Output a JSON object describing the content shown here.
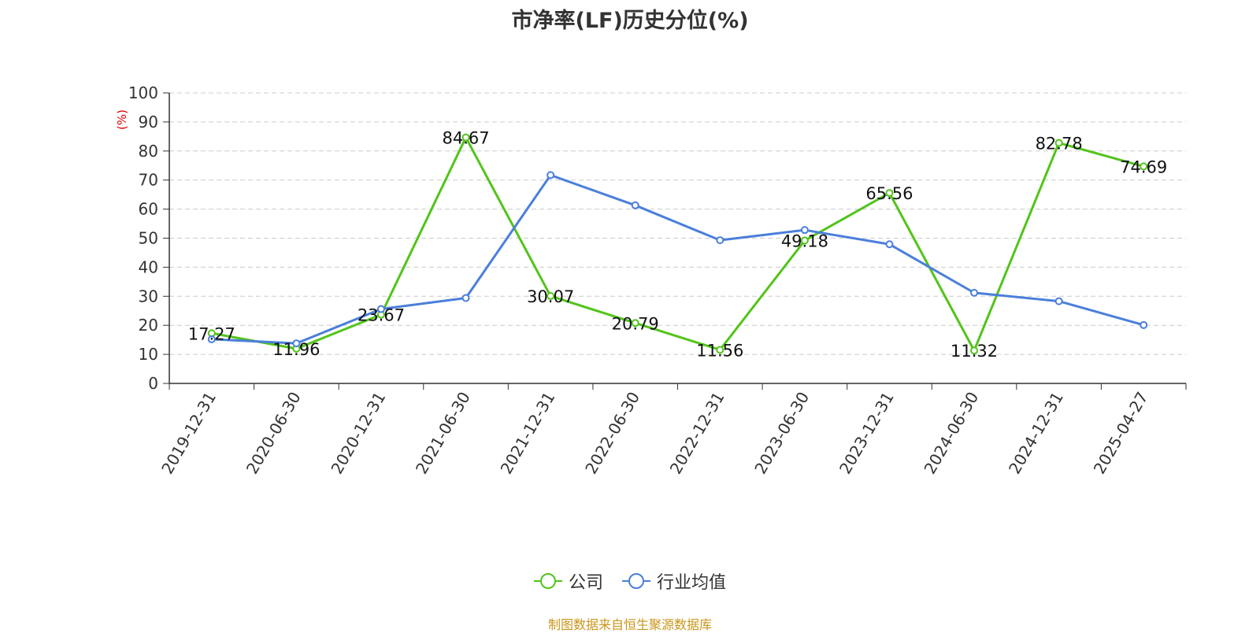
{
  "chart_data": {
    "type": "line",
    "title": "市净率(LF)历史分位(%)",
    "ylabel": "(%)",
    "ylim": [
      0,
      100
    ],
    "yticks": [
      0,
      10,
      20,
      30,
      40,
      50,
      60,
      70,
      80,
      90,
      100
    ],
    "categories": [
      "2019-12-31",
      "2020-06-30",
      "2020-12-31",
      "2021-06-30",
      "2021-12-31",
      "2022-06-30",
      "2022-12-31",
      "2023-06-30",
      "2023-12-31",
      "2024-06-30",
      "2024-12-31",
      "2025-04-27"
    ],
    "grid": true,
    "legend_position": "bottom",
    "series": [
      {
        "name": "公司",
        "color": "#52c41a",
        "values": [
          17.27,
          11.96,
          23.67,
          84.67,
          30.07,
          20.79,
          11.56,
          49.18,
          65.56,
          11.32,
          82.78,
          74.69
        ],
        "labels": [
          "17.27",
          "11.96",
          "23.67",
          "84.67",
          "30.07",
          "20.79",
          "11.56",
          "49.18",
          "65.56",
          "11.32",
          "82.78",
          "74.69"
        ]
      },
      {
        "name": "行业均值",
        "color": "#4a7fdb",
        "values": [
          15.2,
          13.8,
          25.6,
          29.4,
          71.7,
          61.3,
          49.3,
          52.8,
          47.9,
          31.2,
          28.3,
          20.1
        ]
      }
    ]
  },
  "source_text": "制图数据来自恒生聚源数据库"
}
